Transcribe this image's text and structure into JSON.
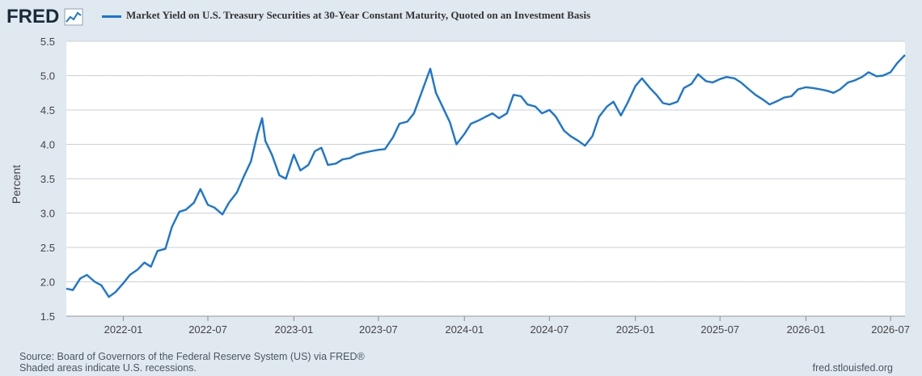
{
  "header": {
    "logo_text": "FRED",
    "logo_icon": "chart-line-icon",
    "series_title": "Market Yield on U.S. Treasury Securities at 30-Year Constant Maturity, Quoted on an Investment Basis",
    "series_color": "#1976d2"
  },
  "footer": {
    "source": "Source: Board of Governors of the Federal Reserve System (US) via FRED®",
    "recession_note": "Shaded areas indicate U.S. recessions.",
    "site": "fred.stlouisfed.org"
  },
  "chart_data": {
    "type": "line",
    "ylabel": "Percent",
    "ylim": [
      1.5,
      5.5
    ],
    "yticks": [
      "1.5",
      "2.0",
      "2.5",
      "3.0",
      "3.5",
      "4.0",
      "4.5",
      "5.0",
      "5.5"
    ],
    "xlim": [
      "2021-09-01",
      "2026-08-01"
    ],
    "xticks": [
      "2022-01",
      "2022-07",
      "2023-01",
      "2023-07",
      "2024-01",
      "2024-07",
      "2025-01",
      "2025-07",
      "2026-01",
      "2026-07"
    ],
    "grid": true,
    "series": [
      {
        "name": "Market Yield on U.S. Treasury Securities at 30-Year Constant Maturity, Quoted on an Investment Basis",
        "x": [
          "2021-09-01",
          "2021-09-15",
          "2021-10-01",
          "2021-10-15",
          "2021-11-01",
          "2021-11-15",
          "2021-12-01",
          "2021-12-15",
          "2022-01-01",
          "2022-01-15",
          "2022-02-01",
          "2022-02-15",
          "2022-03-01",
          "2022-03-15",
          "2022-04-01",
          "2022-04-15",
          "2022-05-01",
          "2022-05-15",
          "2022-06-01",
          "2022-06-15",
          "2022-07-01",
          "2022-07-15",
          "2022-08-01",
          "2022-08-15",
          "2022-09-01",
          "2022-09-15",
          "2022-10-01",
          "2022-10-15",
          "2022-10-25",
          "2022-11-01",
          "2022-11-15",
          "2022-12-01",
          "2022-12-15",
          "2023-01-01",
          "2023-01-15",
          "2023-02-01",
          "2023-02-15",
          "2023-03-01",
          "2023-03-15",
          "2023-04-01",
          "2023-04-15",
          "2023-05-01",
          "2023-05-15",
          "2023-06-01",
          "2023-06-15",
          "2023-07-01",
          "2023-07-15",
          "2023-08-01",
          "2023-08-15",
          "2023-09-01",
          "2023-09-15",
          "2023-10-01",
          "2023-10-20",
          "2023-11-01",
          "2023-11-15",
          "2023-12-01",
          "2023-12-15",
          "2024-01-01",
          "2024-01-15",
          "2024-02-01",
          "2024-02-15",
          "2024-03-01",
          "2024-03-15",
          "2024-04-01",
          "2024-04-15",
          "2024-05-01",
          "2024-05-15",
          "2024-06-01",
          "2024-06-15",
          "2024-07-01",
          "2024-07-15",
          "2024-08-01",
          "2024-08-15",
          "2024-09-01",
          "2024-09-15",
          "2024-10-01",
          "2024-10-15",
          "2024-11-01",
          "2024-11-15",
          "2024-12-01",
          "2024-12-15",
          "2025-01-01",
          "2025-01-15",
          "2025-02-01",
          "2025-02-15",
          "2025-03-01",
          "2025-03-15",
          "2025-04-01",
          "2025-04-15",
          "2025-05-01",
          "2025-05-15",
          "2025-06-01",
          "2025-06-15",
          "2025-07-01",
          "2025-07-15",
          "2025-08-01",
          "2025-08-15",
          "2025-09-01",
          "2025-09-15",
          "2025-10-01",
          "2025-10-15",
          "2025-11-01",
          "2025-11-15",
          "2025-12-01",
          "2025-12-15",
          "2026-01-01",
          "2026-01-15",
          "2026-02-01",
          "2026-02-15",
          "2026-03-01",
          "2026-03-15",
          "2026-04-01",
          "2026-04-15",
          "2026-05-01",
          "2026-05-15",
          "2026-06-01",
          "2026-06-15",
          "2026-07-01",
          "2026-07-15",
          "2026-08-01"
        ],
        "y": [
          1.9,
          1.88,
          2.05,
          2.1,
          2.0,
          1.95,
          1.78,
          1.85,
          1.98,
          2.1,
          2.18,
          2.28,
          2.22,
          2.45,
          2.48,
          2.8,
          3.02,
          3.05,
          3.15,
          3.35,
          3.12,
          3.08,
          2.98,
          3.15,
          3.3,
          3.52,
          3.75,
          4.15,
          4.38,
          4.05,
          3.85,
          3.55,
          3.5,
          3.85,
          3.62,
          3.7,
          3.9,
          3.95,
          3.7,
          3.72,
          3.78,
          3.8,
          3.85,
          3.88,
          3.9,
          3.92,
          3.93,
          4.1,
          4.3,
          4.33,
          4.45,
          4.75,
          5.1,
          4.75,
          4.55,
          4.32,
          4.0,
          4.15,
          4.3,
          4.35,
          4.4,
          4.45,
          4.38,
          4.45,
          4.72,
          4.7,
          4.58,
          4.55,
          4.45,
          4.5,
          4.4,
          4.2,
          4.12,
          4.05,
          3.98,
          4.12,
          4.4,
          4.55,
          4.62,
          4.42,
          4.6,
          4.85,
          4.96,
          4.82,
          4.72,
          4.6,
          4.58,
          4.62,
          4.82,
          4.88,
          5.02,
          4.92,
          4.9,
          4.95,
          4.98,
          4.96,
          4.9,
          4.8,
          4.72,
          4.65,
          4.58,
          4.63,
          4.68,
          4.7,
          4.8,
          4.83,
          4.82,
          4.8,
          4.78,
          4.75,
          4.8,
          4.9,
          4.93,
          4.98,
          5.05,
          4.99,
          5.0,
          5.05,
          5.18,
          5.3
        ]
      }
    ]
  }
}
